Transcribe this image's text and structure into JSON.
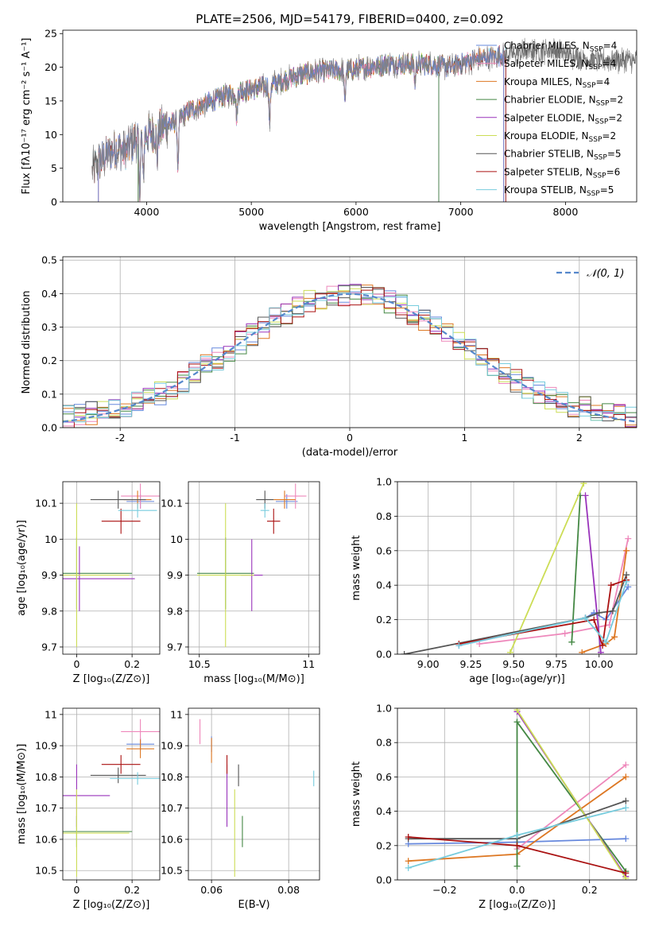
{
  "figure": {
    "title": "PLATE=2506, MJD=54179, FIBERID=0400, z=0.092"
  },
  "series_meta": [
    {
      "name": "Chabrier MILES, N",
      "sub": "SSP",
      "eq": "=4",
      "color": "#6688dd"
    },
    {
      "name": "Salpeter MILES, N",
      "sub": "SSP",
      "eq": "=4",
      "color": "#ee88bb"
    },
    {
      "name": "Kroupa MILES, N",
      "sub": "SSP",
      "eq": "=4",
      "color": "#dd7722"
    },
    {
      "name": "Chabrier ELODIE, N",
      "sub": "SSP",
      "eq": "=2",
      "color": "#448844"
    },
    {
      "name": "Salpeter ELODIE, N",
      "sub": "SSP",
      "eq": "=2",
      "color": "#9933bb"
    },
    {
      "name": "Kroupa ELODIE, N",
      "sub": "SSP",
      "eq": "=2",
      "color": "#ccdd55"
    },
    {
      "name": "Chabrier STELIB, N",
      "sub": "SSP",
      "eq": "=5",
      "color": "#555555"
    },
    {
      "name": "Salpeter STELIB, N",
      "sub": "SSP",
      "eq": "=6",
      "color": "#aa1111"
    },
    {
      "name": "Kroupa STELIB, N",
      "sub": "SSP",
      "eq": "=5",
      "color": "#77ccdd"
    }
  ],
  "chart_data": [
    {
      "id": "spectrum",
      "type": "line",
      "xlabel": "wavelength [Angstrom, rest frame]",
      "ylabel": "Flux [fλ10⁻¹⁷ erg cm⁻² s⁻¹ A⁻¹]",
      "xlim": [
        3200,
        8680
      ],
      "ylim": [
        0,
        25.5
      ],
      "xticks": [
        4000,
        5000,
        6000,
        7000,
        8000
      ],
      "yticks": [
        0,
        5,
        10,
        15,
        20,
        25
      ],
      "observed_continuum": [
        [
          3480,
          4.5
        ],
        [
          3550,
          6
        ],
        [
          3700,
          8
        ],
        [
          3800,
          7.5
        ],
        [
          3900,
          9.5
        ],
        [
          4000,
          10
        ],
        [
          4100,
          10.5
        ],
        [
          4200,
          11.5
        ],
        [
          4300,
          12
        ],
        [
          4400,
          13.5
        ],
        [
          4500,
          14
        ],
        [
          4700,
          15.5
        ],
        [
          4900,
          16.5
        ],
        [
          5100,
          17
        ],
        [
          5300,
          18
        ],
        [
          5500,
          19
        ],
        [
          5700,
          19.5
        ],
        [
          5900,
          19.5
        ],
        [
          6100,
          20
        ],
        [
          6300,
          20.5
        ],
        [
          6500,
          20.5
        ],
        [
          6700,
          20.5
        ],
        [
          6900,
          20
        ],
        [
          7100,
          21
        ],
        [
          7300,
          21.5
        ],
        [
          7500,
          22
        ],
        [
          7700,
          22.5
        ],
        [
          7900,
          22.5
        ],
        [
          8100,
          21.5
        ],
        [
          8300,
          21
        ]
      ],
      "absorption_features": [
        [
          3933,
          8
        ],
        [
          3968,
          7
        ],
        [
          4101,
          4
        ],
        [
          4300,
          7
        ],
        [
          4861,
          4
        ],
        [
          5175,
          6
        ],
        [
          5893,
          5
        ],
        [
          6563,
          3
        ]
      ],
      "series_wavelength_cut": [
        {
          "name": "Chabrier MILES",
          "start": 3540,
          "end": 7410
        },
        {
          "name": "Salpeter MILES",
          "start": 3540,
          "end": 7410
        },
        {
          "name": "Kroupa MILES",
          "start": 3540,
          "end": 7410
        },
        {
          "name": "Chabrier ELODIE",
          "start": 3920,
          "end": 6790
        },
        {
          "name": "Salpeter ELODIE",
          "start": 3920,
          "end": 6790
        },
        {
          "name": "Kroupa ELODIE",
          "start": 3920,
          "end": 6790
        },
        {
          "name": "Chabrier STELIB",
          "start": 3480,
          "end": 8680
        },
        {
          "name": "Salpeter STELIB",
          "start": 3480,
          "end": 7430
        },
        {
          "name": "Kroupa STELIB",
          "start": 3480,
          "end": 7430
        }
      ]
    },
    {
      "id": "residuals",
      "type": "histogram",
      "xlabel": "(data-model)/error",
      "ylabel": "Normed distribution",
      "xlim": [
        -2.5,
        2.5
      ],
      "ylim": [
        0,
        0.51
      ],
      "xticks": [
        -2,
        -1,
        0,
        1,
        2
      ],
      "yticks": [
        0.0,
        0.1,
        0.2,
        0.3,
        0.4,
        0.5
      ],
      "bin_width": 0.1,
      "reference_label": "𝒩(0, 1)",
      "reference_color": "#5588cc"
    },
    {
      "id": "age_vs_Z",
      "type": "errorbar",
      "xlabel": "Z [log₁₀(Z/Z⊙)]",
      "ylabel": "age  [log₁₀(age/yr)]",
      "xlim": [
        -0.05,
        0.3
      ],
      "ylim": [
        9.68,
        10.16
      ],
      "xticks": [
        0.0,
        0.2
      ],
      "yticks": [
        9.7,
        9.8,
        9.9,
        10.0,
        10.1
      ],
      "points": [
        {
          "s": 0,
          "x": 0.23,
          "y": 10.105,
          "xe": 0.05,
          "ye": 0.02
        },
        {
          "s": 1,
          "x": 0.23,
          "y": 10.12,
          "xe": 0.07,
          "ye": 0.035
        },
        {
          "s": 2,
          "x": 0.22,
          "y": 10.11,
          "xe": 0.05,
          "ye": 0.025
        },
        {
          "s": 3,
          "x": 0.0,
          "y": 9.905,
          "xe": 0.2,
          "ye": 0.1
        },
        {
          "s": 4,
          "x": 0.01,
          "y": 9.89,
          "xe": 0.2,
          "ye": 0.09
        },
        {
          "s": 5,
          "x": 0.0,
          "y": 9.9,
          "xe": 0.19,
          "ye": 0.2
        },
        {
          "s": 6,
          "x": 0.15,
          "y": 10.11,
          "xe": 0.1,
          "ye": 0.025
        },
        {
          "s": 7,
          "x": 0.16,
          "y": 10.05,
          "xe": 0.07,
          "ye": 0.035
        },
        {
          "s": 8,
          "x": 0.22,
          "y": 10.08,
          "xe": 0.07,
          "ye": 0.02
        }
      ]
    },
    {
      "id": "age_vs_mass",
      "type": "errorbar",
      "xlabel": "mass [log₁₀(M/M⊙)]",
      "ylabel": "",
      "xlim": [
        10.45,
        11.05
      ],
      "ylim": [
        9.68,
        10.16
      ],
      "xticks": [
        10.5,
        11.0
      ],
      "yticks": [
        9.7,
        9.8,
        9.9,
        10.0,
        10.1
      ],
      "points": [
        {
          "s": 0,
          "x": 10.9,
          "y": 10.105,
          "xe": 0.05,
          "ye": 0.02
        },
        {
          "s": 1,
          "x": 10.94,
          "y": 10.12,
          "xe": 0.05,
          "ye": 0.035
        },
        {
          "s": 2,
          "x": 10.89,
          "y": 10.11,
          "xe": 0.05,
          "ye": 0.025
        },
        {
          "s": 3,
          "x": 10.62,
          "y": 9.905,
          "xe": 0.13,
          "ye": 0.1
        },
        {
          "s": 4,
          "x": 10.74,
          "y": 9.9,
          "xe": 0.05,
          "ye": 0.1
        },
        {
          "s": 5,
          "x": 10.62,
          "y": 9.9,
          "xe": 0.13,
          "ye": 0.2
        },
        {
          "s": 6,
          "x": 10.8,
          "y": 10.11,
          "xe": 0.04,
          "ye": 0.025
        },
        {
          "s": 7,
          "x": 10.84,
          "y": 10.05,
          "xe": 0.03,
          "ye": 0.035
        },
        {
          "s": 8,
          "x": 10.8,
          "y": 10.08,
          "xe": 0.02,
          "ye": 0.02
        }
      ]
    },
    {
      "id": "weight_vs_age",
      "type": "line",
      "xlabel": "age  [log₁₀(age/yr)]",
      "ylabel": "mass weight",
      "xlim": [
        8.82,
        10.22
      ],
      "ylim": [
        0,
        1.0
      ],
      "xticks": [
        9.0,
        9.25,
        9.5,
        9.75,
        10.0
      ],
      "xticklabels": [
        "9.00",
        "9.25",
        "9.50",
        "9.75",
        "10.00"
      ],
      "yticks": [
        0.0,
        0.2,
        0.4,
        0.6,
        0.8,
        1.0
      ],
      "lines": [
        {
          "s": 0,
          "pts": [
            [
              9.18,
              0.05
            ],
            [
              9.92,
              0.21
            ],
            [
              9.97,
              0.24
            ],
            [
              10.04,
              0.2
            ],
            [
              10.17,
              0.39
            ]
          ]
        },
        {
          "s": 1,
          "pts": [
            [
              9.3,
              0.06
            ],
            [
              9.8,
              0.12
            ],
            [
              10.06,
              0.17
            ],
            [
              10.17,
              0.67
            ]
          ]
        },
        {
          "s": 2,
          "pts": [
            [
              9.9,
              0.01
            ],
            [
              10.04,
              0.06
            ],
            [
              10.09,
              0.1
            ],
            [
              10.16,
              0.6
            ]
          ]
        },
        {
          "s": 3,
          "pts": [
            [
              9.84,
              0.07
            ],
            [
              9.89,
              0.92
            ]
          ]
        },
        {
          "s": 4,
          "pts": [
            [
              9.92,
              0.92
            ],
            [
              10.01,
              0.01
            ]
          ]
        },
        {
          "s": 5,
          "pts": [
            [
              9.48,
              0.01
            ],
            [
              9.91,
              0.99
            ]
          ]
        },
        {
          "s": 6,
          "pts": [
            [
              8.86,
              0.0
            ],
            [
              9.92,
              0.21
            ],
            [
              10.0,
              0.24
            ],
            [
              10.08,
              0.25
            ],
            [
              10.16,
              0.46
            ]
          ]
        },
        {
          "s": 7,
          "pts": [
            [
              9.18,
              0.06
            ],
            [
              9.97,
              0.2
            ],
            [
              10.02,
              0.05
            ],
            [
              10.07,
              0.4
            ],
            [
              10.16,
              0.43
            ]
          ]
        },
        {
          "s": 8,
          "pts": [
            [
              9.18,
              0.05
            ],
            [
              9.92,
              0.21
            ],
            [
              10.04,
              0.07
            ],
            [
              10.16,
              0.42
            ]
          ]
        }
      ]
    },
    {
      "id": "mass_vs_Z",
      "type": "errorbar",
      "xlabel": "Z [log₁₀(Z/Z⊙)]",
      "ylabel": "mass [log₁₀(M/M⊙)]",
      "xlim": [
        -0.05,
        0.3
      ],
      "ylim": [
        10.47,
        11.02
      ],
      "xticks": [
        0.0,
        0.2
      ],
      "yticks": [
        10.5,
        10.6,
        10.7,
        10.8,
        10.9,
        11.0
      ],
      "points": [
        {
          "s": 0,
          "x": 0.23,
          "y": 10.905,
          "xe": 0.05,
          "ye": 0.02
        },
        {
          "s": 1,
          "x": 0.23,
          "y": 10.945,
          "xe": 0.07,
          "ye": 0.04
        },
        {
          "s": 2,
          "x": 0.23,
          "y": 10.89,
          "xe": 0.05,
          "ye": 0.03
        },
        {
          "s": 3,
          "x": 0.0,
          "y": 10.625,
          "xe": 0.2,
          "ye": 0.05
        },
        {
          "s": 4,
          "x": 0.0,
          "y": 10.74,
          "xe": 0.12,
          "ye": 0.1
        },
        {
          "s": 5,
          "x": 0.0,
          "y": 10.62,
          "xe": 0.19,
          "ye": 0.14
        },
        {
          "s": 6,
          "x": 0.15,
          "y": 10.805,
          "xe": 0.1,
          "ye": 0.025
        },
        {
          "s": 7,
          "x": 0.16,
          "y": 10.84,
          "xe": 0.07,
          "ye": 0.03
        },
        {
          "s": 8,
          "x": 0.22,
          "y": 10.795,
          "xe": 0.1,
          "ye": 0.02
        }
      ]
    },
    {
      "id": "mass_vs_ebv",
      "type": "errorbar",
      "xlabel": "E(B-V)",
      "ylabel": "",
      "xlim": [
        0.054,
        0.088
      ],
      "ylim": [
        10.47,
        11.02
      ],
      "xticks": [
        0.06,
        0.08
      ],
      "yticks": [
        10.5,
        10.6,
        10.7,
        10.8,
        10.9,
        11.0
      ],
      "points": [
        {
          "s": 0,
          "x": 0.06,
          "y": 10.905,
          "xe": 0.0,
          "ye": 0.025
        },
        {
          "s": 1,
          "x": 0.057,
          "y": 10.945,
          "xe": 0.0,
          "ye": 0.04
        },
        {
          "s": 2,
          "x": 0.06,
          "y": 10.885,
          "xe": 0.0,
          "ye": 0.04
        },
        {
          "s": 3,
          "x": 0.068,
          "y": 10.625,
          "xe": 0.0,
          "ye": 0.05
        },
        {
          "s": 4,
          "x": 0.064,
          "y": 10.74,
          "xe": 0.0,
          "ye": 0.1
        },
        {
          "s": 5,
          "x": 0.066,
          "y": 10.62,
          "xe": 0.0,
          "ye": 0.14
        },
        {
          "s": 6,
          "x": 0.067,
          "y": 10.805,
          "xe": 0.0,
          "ye": 0.035
        },
        {
          "s": 7,
          "x": 0.064,
          "y": 10.84,
          "xe": 0.0,
          "ye": 0.03
        },
        {
          "s": 8,
          "x": 0.0865,
          "y": 10.795,
          "xe": 0.0,
          "ye": 0.025
        }
      ]
    },
    {
      "id": "weight_vs_Z",
      "type": "line",
      "xlabel": "Z [log₁₀(Z/Z⊙)]",
      "ylabel": "mass weight",
      "xlim": [
        -0.33,
        0.33
      ],
      "ylim": [
        0,
        1.0
      ],
      "xticks": [
        -0.2,
        0.0,
        0.2
      ],
      "xticklabels": [
        "−0.2",
        "0.0",
        "0.2"
      ],
      "yticks": [
        0.0,
        0.2,
        0.4,
        0.6,
        0.8,
        1.0
      ],
      "lines": [
        {
          "s": 0,
          "pts": [
            [
              -0.3,
              0.21
            ],
            [
              0.0,
              0.22
            ],
            [
              0.3,
              0.24
            ]
          ]
        },
        {
          "s": 1,
          "pts": [
            [
              0.0,
              0.18
            ],
            [
              0.3,
              0.67
            ]
          ]
        },
        {
          "s": 2,
          "pts": [
            [
              -0.3,
              0.11
            ],
            [
              0.0,
              0.15
            ],
            [
              0.3,
              0.6
            ]
          ]
        },
        {
          "s": 3,
          "pts": [
            [
              0.0,
              0.08
            ],
            [
              0.0,
              0.92
            ],
            [
              0.3,
              0.05
            ]
          ]
        },
        {
          "s": 4,
          "pts": [
            [
              0.0,
              0.98
            ],
            [
              0.3,
              0.02
            ]
          ]
        },
        {
          "s": 5,
          "pts": [
            [
              0.0,
              0.99
            ],
            [
              0.3,
              0.01
            ]
          ]
        },
        {
          "s": 6,
          "pts": [
            [
              -0.3,
              0.24
            ],
            [
              0.0,
              0.24
            ],
            [
              0.3,
              0.46
            ]
          ]
        },
        {
          "s": 7,
          "pts": [
            [
              -0.3,
              0.25
            ],
            [
              0.0,
              0.2
            ],
            [
              0.3,
              0.04
            ]
          ]
        },
        {
          "s": 8,
          "pts": [
            [
              -0.3,
              0.07
            ],
            [
              0.0,
              0.26
            ],
            [
              0.3,
              0.42
            ]
          ]
        }
      ]
    }
  ]
}
